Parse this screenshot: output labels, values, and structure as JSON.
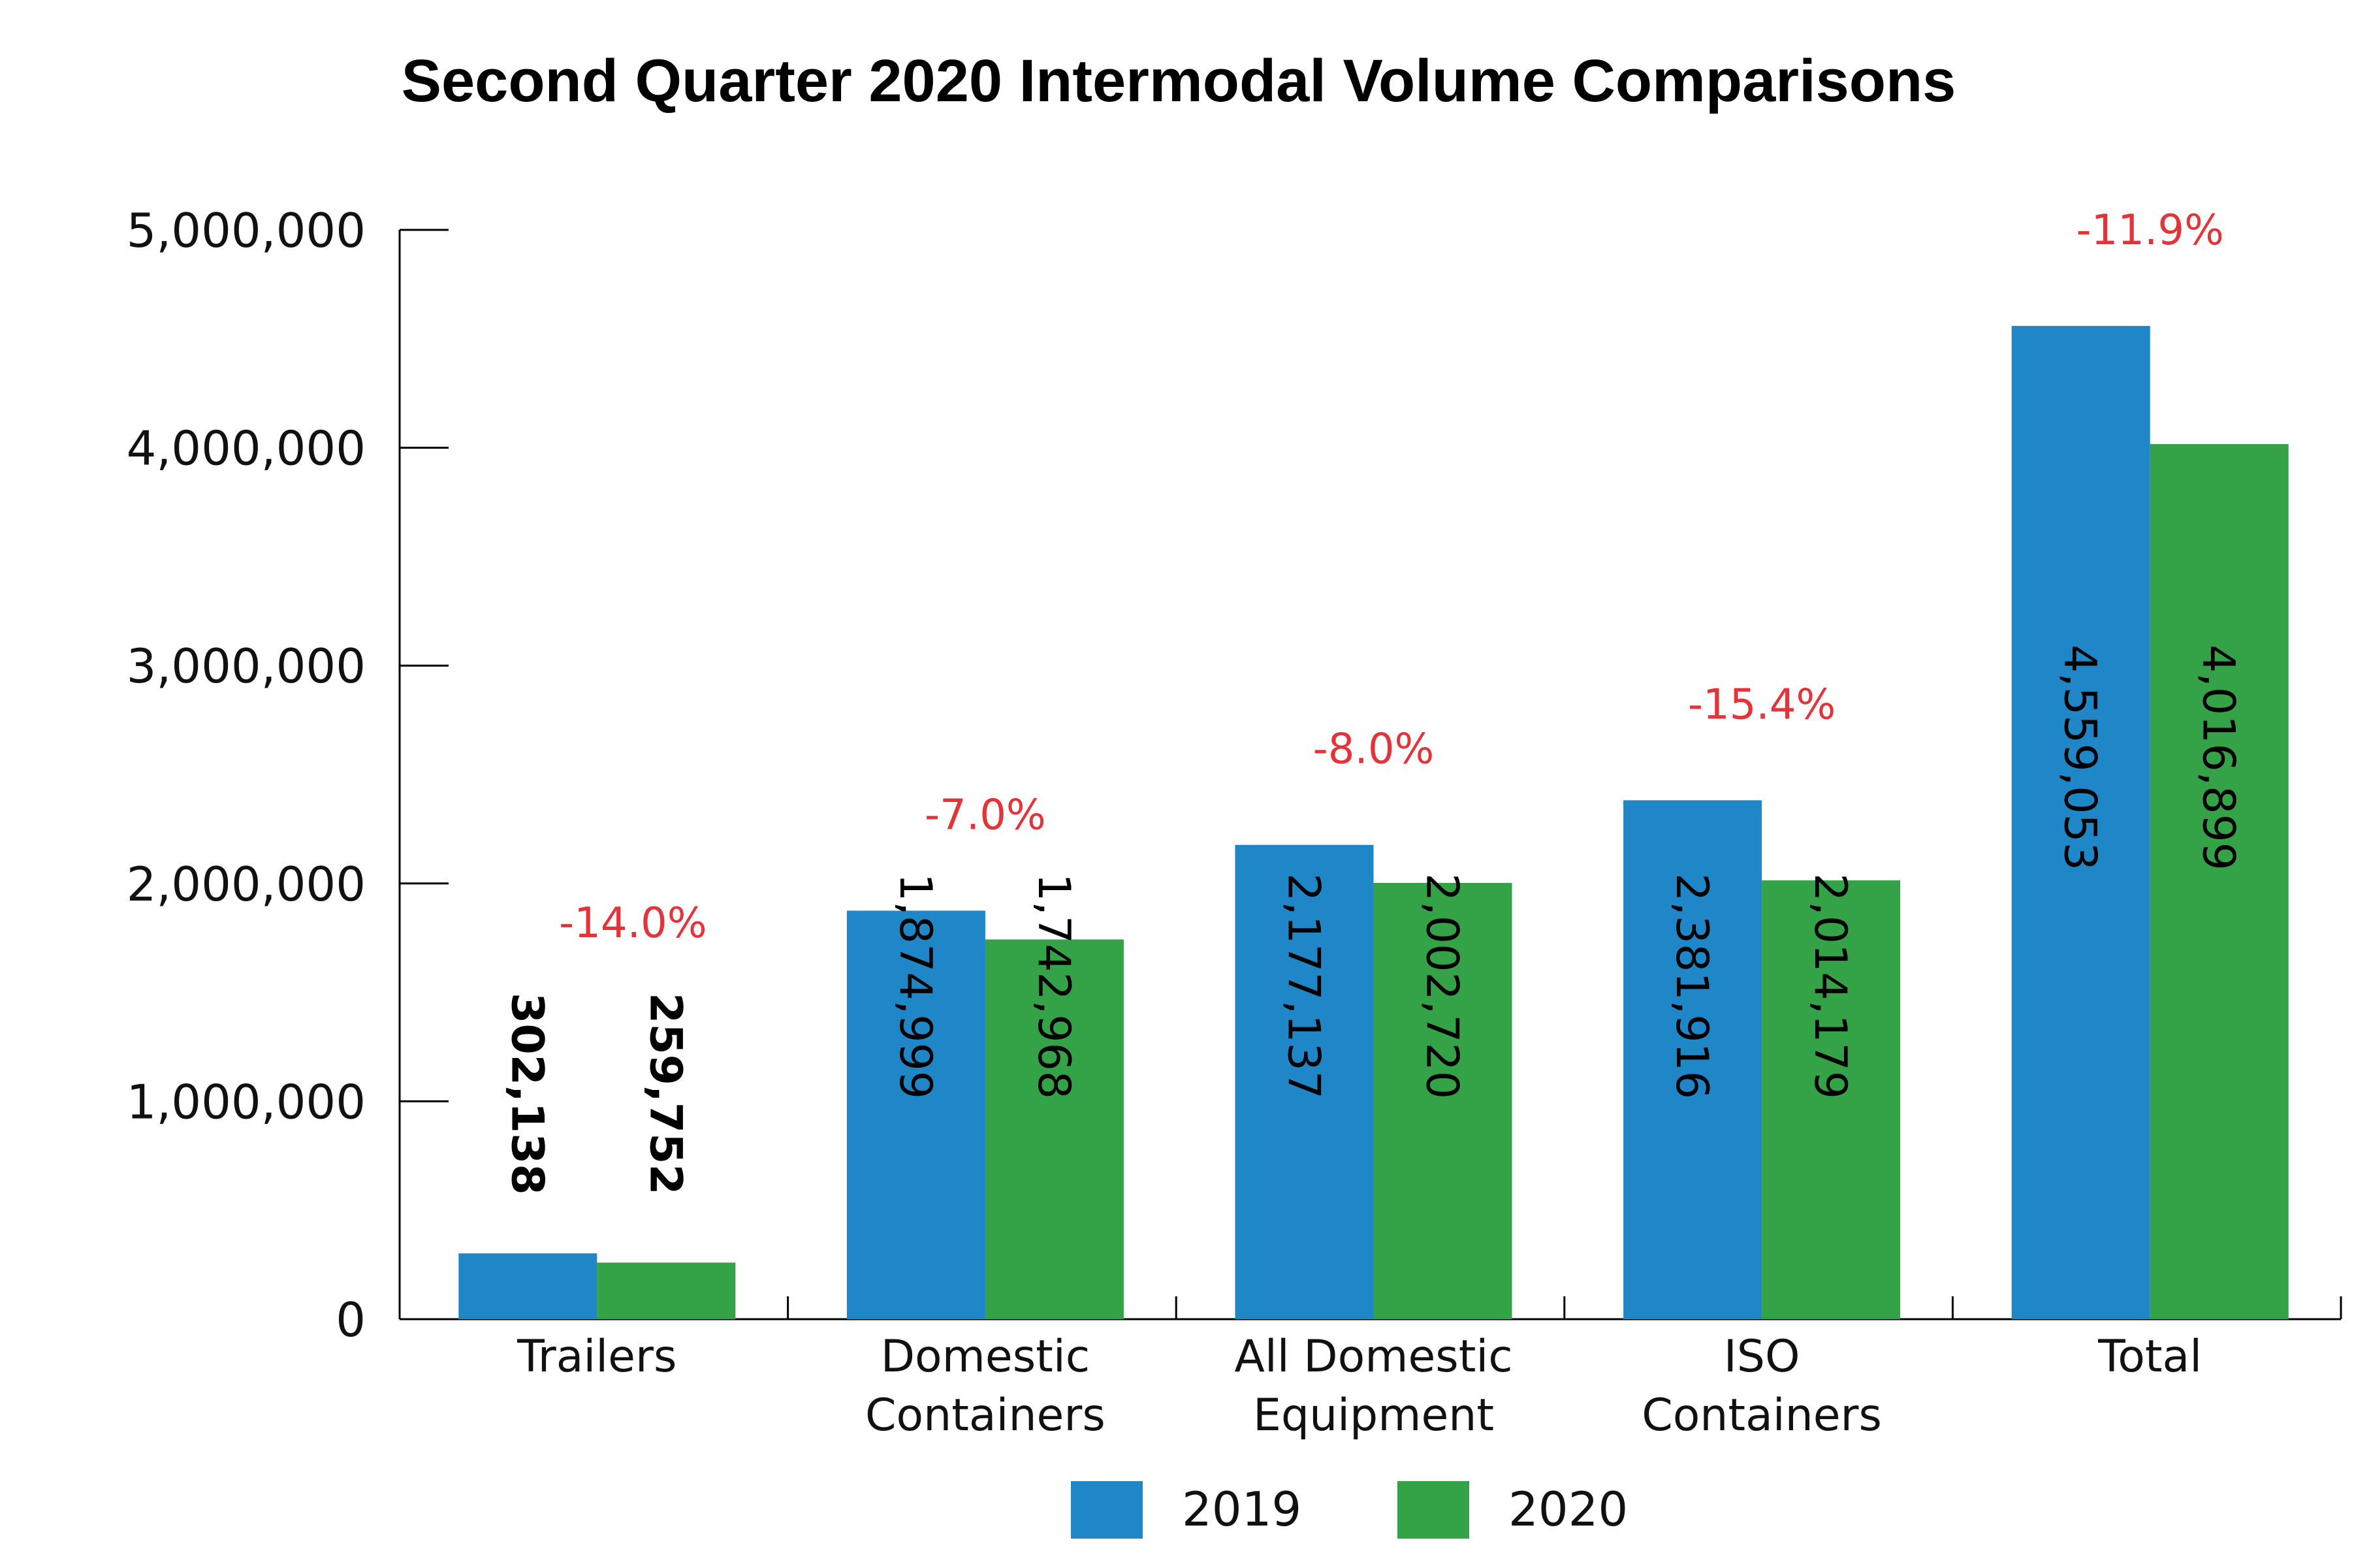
{
  "chart_data": {
    "type": "bar",
    "title": "Second Quarter 2020 Intermodal Volume Comparisons",
    "categories": [
      [
        "Trailers"
      ],
      [
        "Domestic",
        "Containers"
      ],
      [
        "All Domestic",
        "Equipment"
      ],
      [
        "ISO",
        "Containers"
      ],
      [
        "Total"
      ]
    ],
    "series": [
      {
        "name": "2019",
        "color": "#1F87C8",
        "values": [
          302138,
          1874999,
          2177137,
          2381916,
          4559053
        ],
        "value_labels": [
          "302,138",
          "1,874,999",
          "2,177,137",
          "2,381,916",
          "4,559,053"
        ]
      },
      {
        "name": "2020",
        "color": "#34A247",
        "values": [
          259752,
          1742968,
          2002720,
          2014179,
          4016899
        ],
        "value_labels": [
          "259,752",
          "1,742,968",
          "2,002,720",
          "2,014,179",
          "4,016,899"
        ]
      }
    ],
    "pct_change": [
      "-14.0%",
      "-7.0%",
      "-8.0%",
      "-15.4%",
      "-11.9%"
    ],
    "pct_color": "#E5333A",
    "ylim": [
      0,
      5000000
    ],
    "yticks": [
      0,
      1000000,
      2000000,
      3000000,
      4000000,
      5000000
    ],
    "ytick_labels": [
      "0",
      "1,000,000",
      "2,000,000",
      "3,000,000",
      "4,000,000",
      "5,000,000"
    ],
    "grid": false,
    "legend_position": "bottom-center",
    "xlabel": "",
    "ylabel": ""
  }
}
